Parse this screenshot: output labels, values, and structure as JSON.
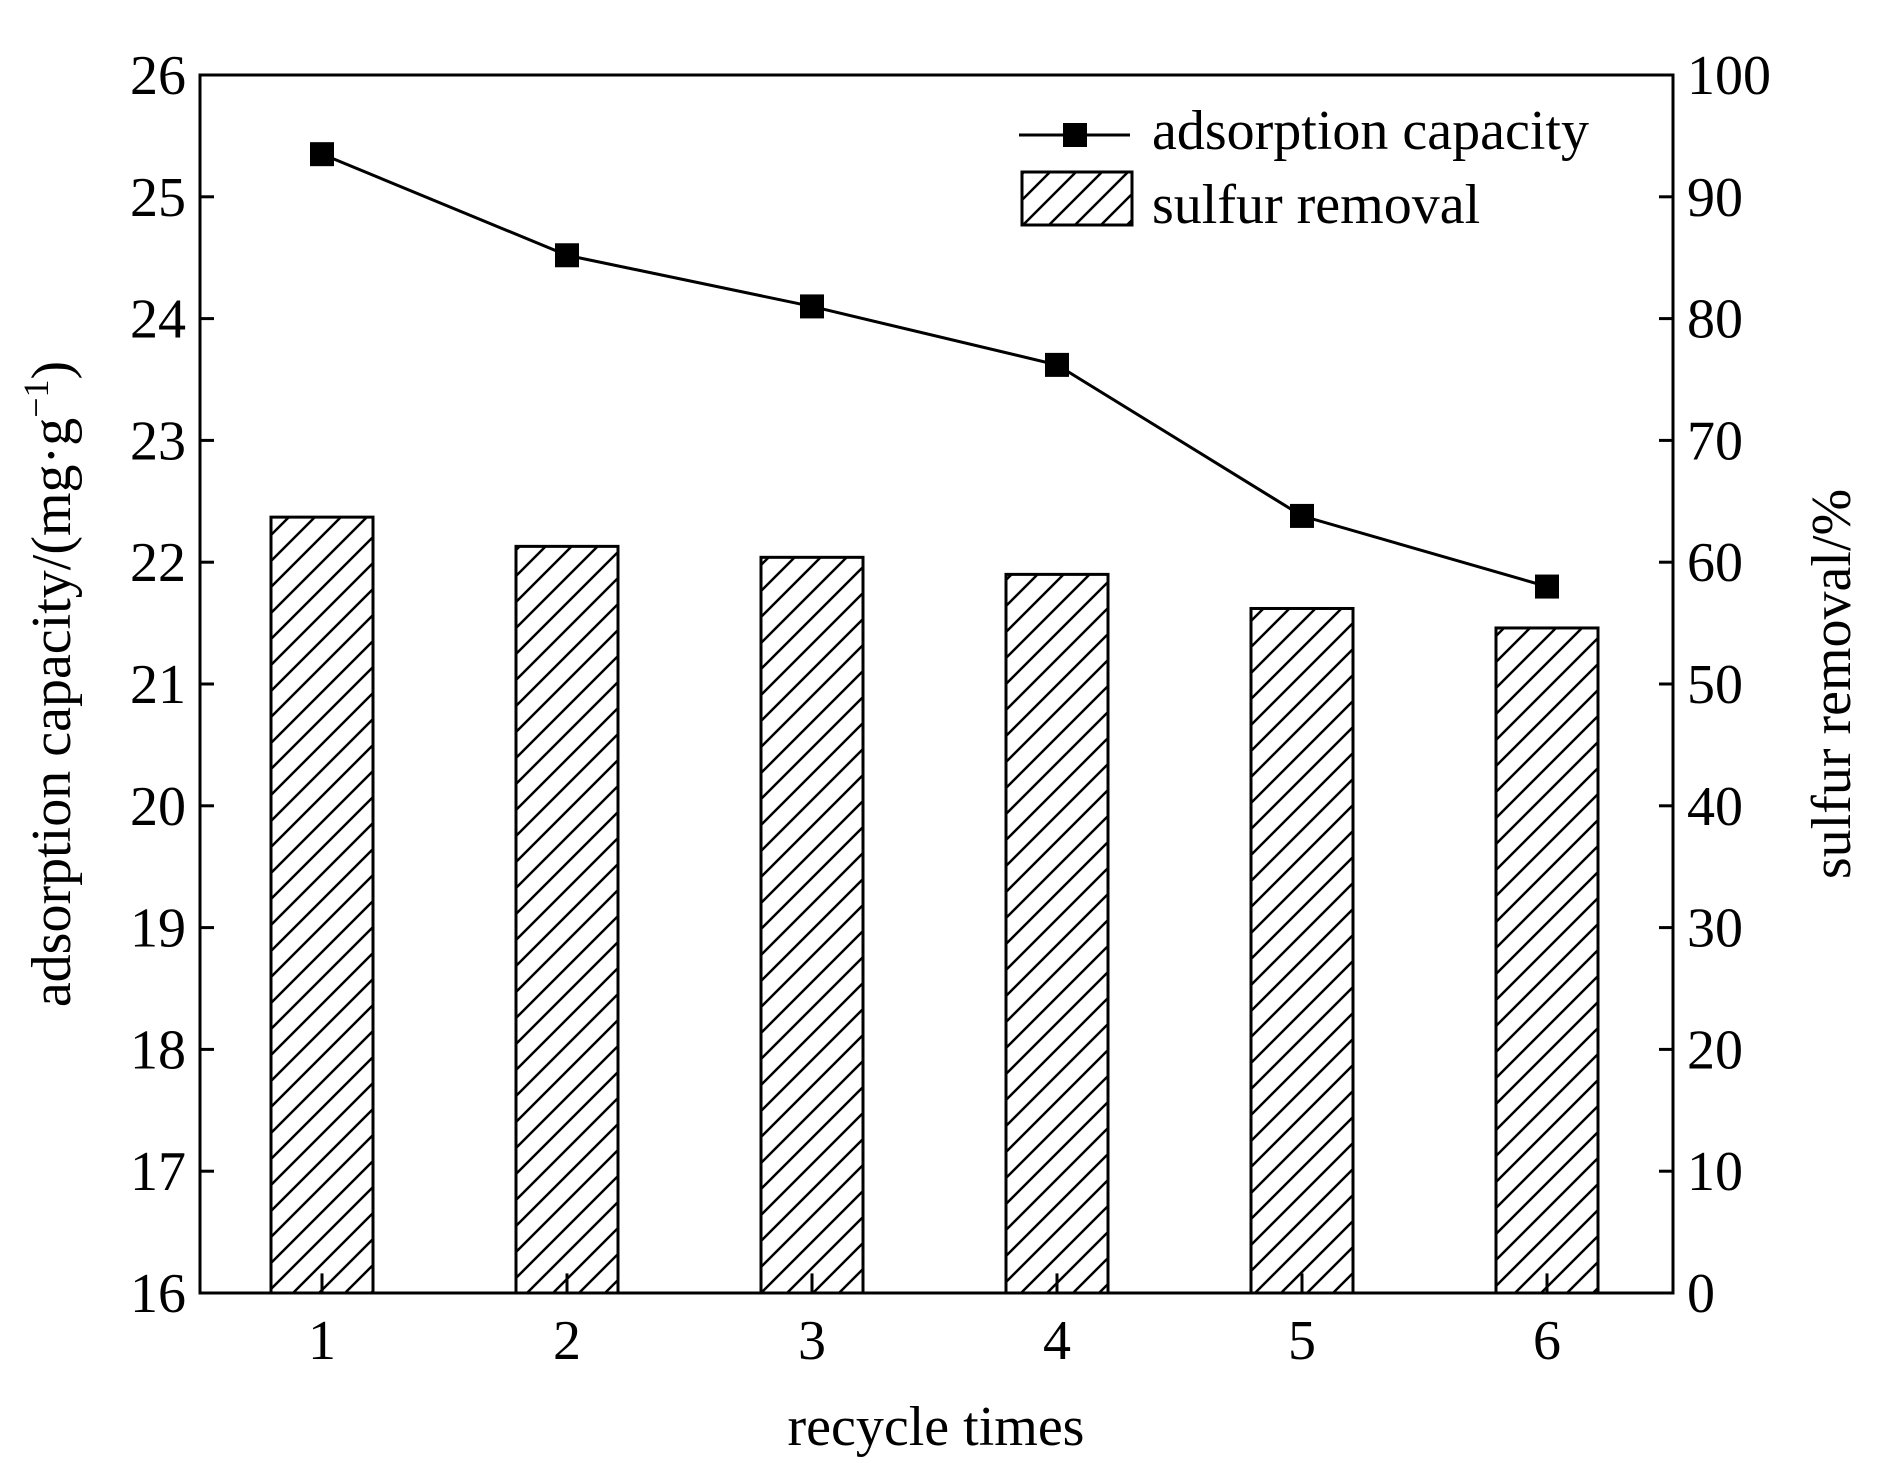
{
  "chart_data": {
    "type": "bar+line",
    "title": "",
    "xlabel": "recycle times",
    "ylabel_left_main": "adsorption capacity/(mg·g",
    "ylabel_left_sup": "−1",
    "ylabel_left_end": ")",
    "ylabel_right": "sulfur removal/%",
    "categories": [
      "1",
      "2",
      "3",
      "4",
      "5",
      "6"
    ],
    "ylim_left": [
      16,
      26
    ],
    "ylim_right": [
      0,
      100
    ],
    "yticks_left": [
      "16",
      "17",
      "18",
      "19",
      "20",
      "21",
      "22",
      "23",
      "24",
      "25",
      "26"
    ],
    "yticks_right": [
      "0",
      "10",
      "20",
      "30",
      "40",
      "50",
      "60",
      "70",
      "80",
      "90",
      "100"
    ],
    "series": [
      {
        "name": "adsorption capacity",
        "type": "line",
        "axis": "left",
        "marker": "square",
        "values": [
          25.35,
          24.52,
          24.1,
          23.62,
          22.38,
          21.8
        ]
      },
      {
        "name": "sulfur removal",
        "type": "bar",
        "axis": "right",
        "pattern": "diagonal-hatch",
        "values": [
          63.7,
          61.3,
          60.4,
          59.0,
          56.2,
          54.6
        ]
      }
    ],
    "legend_position": "top-right",
    "grid": false
  }
}
